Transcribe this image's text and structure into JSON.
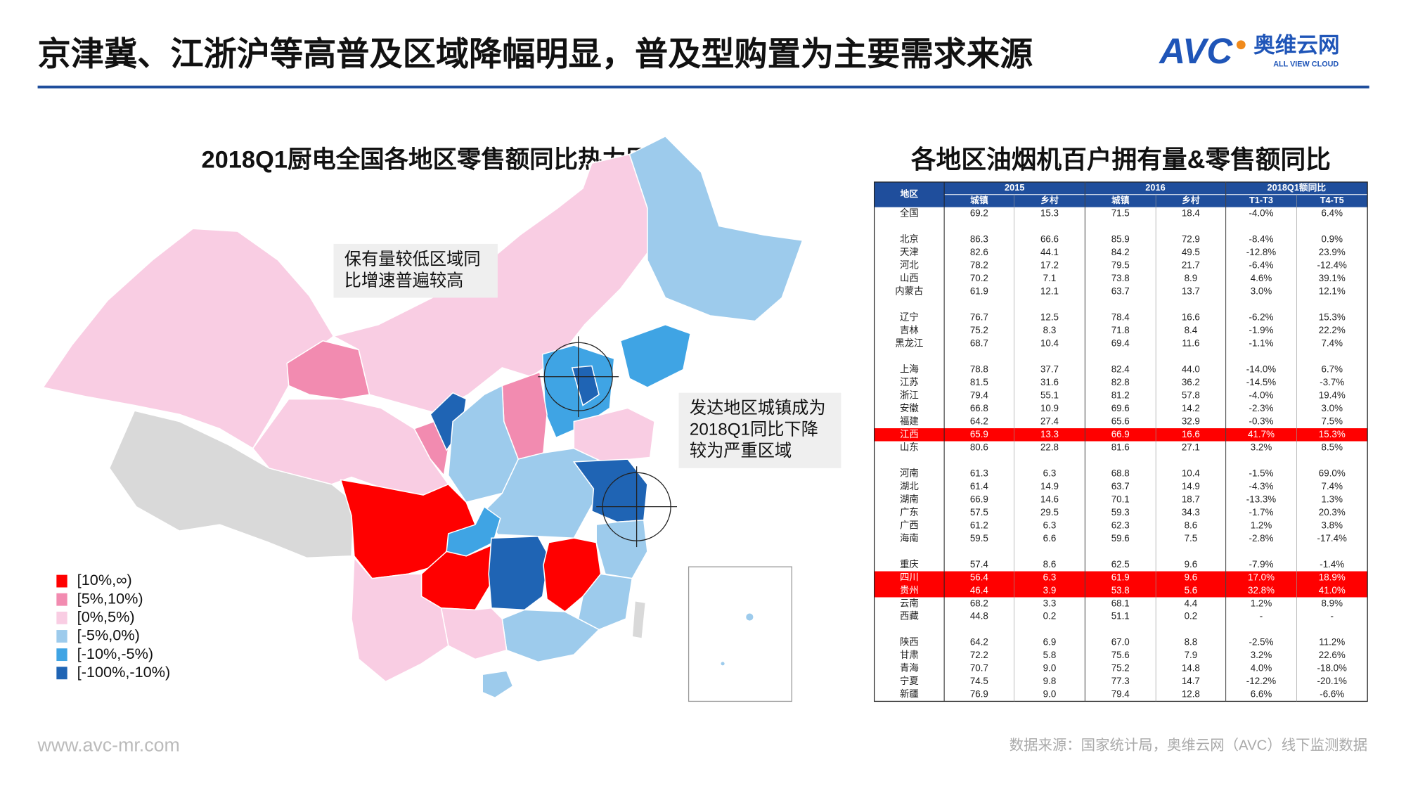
{
  "header": {
    "title": "京津冀、江浙沪等高普及区域降幅明显，普及型购置为主要需求来源",
    "logo": "AVC",
    "logo_cn": "奥维云网",
    "logo_en": "ALL VIEW CLOUD"
  },
  "map": {
    "title": "2018Q1厨电全国各地区零售额同比热力图",
    "legend": [
      {
        "label": "[10%,∞)",
        "color": "#ff0000"
      },
      {
        "label": "[5%,10%)",
        "color": "#f28bb0"
      },
      {
        "label": "[0%,5%)",
        "color": "#f9cde3"
      },
      {
        "label": "[-5%,0%)",
        "color": "#9dcbec"
      },
      {
        "label": "[-10%,-5%)",
        "color": "#3fa4e4"
      },
      {
        "label": "[-100%,-10%)",
        "color": "#1f64b4"
      }
    ],
    "annotations": [
      [
        "保有量较低区域同",
        "比增速普遍较高"
      ],
      [
        "发达地区城镇成为",
        "2018Q1同比下降",
        "较为严重区域"
      ]
    ]
  },
  "table": {
    "title": "各地区油烟机百户拥有量&零售额同比",
    "header": [
      "地区",
      "2015",
      "2016",
      "2018Q1额同比"
    ],
    "subheader": [
      "城镇",
      "乡村",
      "城镇",
      "乡村",
      "T1-T3",
      "T4-T5"
    ],
    "groups": [
      [
        {
          "cells": [
            "全国",
            "69.2",
            "15.3",
            "71.5",
            "18.4",
            "-4.0%",
            "6.4%"
          ]
        }
      ],
      [
        {
          "cells": [
            "北京",
            "86.3",
            "66.6",
            "85.9",
            "72.9",
            "-8.4%",
            "0.9%"
          ]
        },
        {
          "cells": [
            "天津",
            "82.6",
            "44.1",
            "84.2",
            "49.5",
            "-12.8%",
            "23.9%"
          ]
        },
        {
          "cells": [
            "河北",
            "78.2",
            "17.2",
            "79.5",
            "21.7",
            "-6.4%",
            "-12.4%"
          ]
        },
        {
          "cells": [
            "山西",
            "70.2",
            "7.1",
            "73.8",
            "8.9",
            "4.6%",
            "39.1%"
          ]
        },
        {
          "cells": [
            "内蒙古",
            "61.9",
            "12.1",
            "63.7",
            "13.7",
            "3.0%",
            "12.1%"
          ]
        }
      ],
      [
        {
          "cells": [
            "辽宁",
            "76.7",
            "12.5",
            "78.4",
            "16.6",
            "-6.2%",
            "15.3%"
          ]
        },
        {
          "cells": [
            "吉林",
            "75.2",
            "8.3",
            "71.8",
            "8.4",
            "-1.9%",
            "22.2%"
          ]
        },
        {
          "cells": [
            "黑龙江",
            "68.7",
            "10.4",
            "69.4",
            "11.6",
            "-1.1%",
            "7.4%"
          ]
        }
      ],
      [
        {
          "cells": [
            "上海",
            "78.8",
            "37.7",
            "82.4",
            "44.0",
            "-14.0%",
            "6.7%"
          ]
        },
        {
          "cells": [
            "江苏",
            "81.5",
            "31.6",
            "82.8",
            "36.2",
            "-14.5%",
            "-3.7%"
          ]
        },
        {
          "cells": [
            "浙江",
            "79.4",
            "55.1",
            "81.2",
            "57.8",
            "-4.0%",
            "19.4%"
          ]
        },
        {
          "cells": [
            "安徽",
            "66.8",
            "10.9",
            "69.6",
            "14.2",
            "-2.3%",
            "3.0%"
          ]
        },
        {
          "cells": [
            "福建",
            "64.2",
            "27.4",
            "65.6",
            "32.9",
            "-0.3%",
            "7.5%"
          ]
        },
        {
          "cells": [
            "江西",
            "65.9",
            "13.3",
            "66.9",
            "16.6",
            "41.7%",
            "15.3%"
          ],
          "highlight": true
        },
        {
          "cells": [
            "山东",
            "80.6",
            "22.8",
            "81.6",
            "27.1",
            "3.2%",
            "8.5%"
          ]
        }
      ],
      [
        {
          "cells": [
            "河南",
            "61.3",
            "6.3",
            "68.8",
            "10.4",
            "-1.5%",
            "69.0%"
          ]
        },
        {
          "cells": [
            "湖北",
            "61.4",
            "14.9",
            "63.7",
            "14.9",
            "-4.3%",
            "7.4%"
          ]
        },
        {
          "cells": [
            "湖南",
            "66.9",
            "14.6",
            "70.1",
            "18.7",
            "-13.3%",
            "1.3%"
          ]
        },
        {
          "cells": [
            "广东",
            "57.5",
            "29.5",
            "59.3",
            "34.3",
            "-1.7%",
            "20.3%"
          ]
        },
        {
          "cells": [
            "广西",
            "61.2",
            "6.3",
            "62.3",
            "8.6",
            "1.2%",
            "3.8%"
          ]
        },
        {
          "cells": [
            "海南",
            "59.5",
            "6.6",
            "59.6",
            "7.5",
            "-2.8%",
            "-17.4%"
          ]
        }
      ],
      [
        {
          "cells": [
            "重庆",
            "57.4",
            "8.6",
            "62.5",
            "9.6",
            "-7.9%",
            "-1.4%"
          ]
        },
        {
          "cells": [
            "四川",
            "56.4",
            "6.3",
            "61.9",
            "9.6",
            "17.0%",
            "18.9%"
          ],
          "highlight": true
        },
        {
          "cells": [
            "贵州",
            "46.4",
            "3.9",
            "53.8",
            "5.6",
            "32.8%",
            "41.0%"
          ],
          "highlight": true
        },
        {
          "cells": [
            "云南",
            "68.2",
            "3.3",
            "68.1",
            "4.4",
            "1.2%",
            "8.9%"
          ]
        },
        {
          "cells": [
            "西藏",
            "44.8",
            "0.2",
            "51.1",
            "0.2",
            "-",
            "-"
          ]
        }
      ],
      [
        {
          "cells": [
            "陕西",
            "64.2",
            "6.9",
            "67.0",
            "8.8",
            "-2.5%",
            "11.2%"
          ]
        },
        {
          "cells": [
            "甘肃",
            "72.2",
            "5.8",
            "75.6",
            "7.9",
            "3.2%",
            "22.6%"
          ]
        },
        {
          "cells": [
            "青海",
            "70.7",
            "9.0",
            "75.2",
            "14.8",
            "4.0%",
            "-18.0%"
          ]
        },
        {
          "cells": [
            "宁夏",
            "74.5",
            "9.8",
            "77.3",
            "14.7",
            "-12.2%",
            "-20.1%"
          ]
        },
        {
          "cells": [
            "新疆",
            "76.9",
            "9.0",
            "79.4",
            "12.8",
            "6.6%",
            "-6.6%"
          ]
        }
      ]
    ]
  },
  "footer": {
    "website": "www.avc-mr.com",
    "source": "数据来源：国家统计局，奥维云网（AVC）线下监测数据"
  }
}
